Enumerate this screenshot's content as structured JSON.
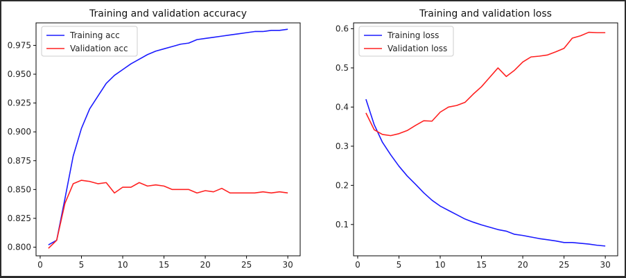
{
  "chart_data": [
    {
      "type": "line",
      "title": "Training and validation accuracy",
      "xlabel": "",
      "ylabel": "",
      "xlim": [
        -0.5,
        31.5
      ],
      "ylim": [
        0.7925,
        0.9945
      ],
      "xticks": [
        0,
        5,
        10,
        15,
        20,
        25,
        30
      ],
      "yticks": [
        0.8,
        0.825,
        0.85,
        0.875,
        0.9,
        0.925,
        0.95,
        0.975
      ],
      "ytick_labels": [
        "0.800",
        "0.825",
        "0.850",
        "0.875",
        "0.900",
        "0.925",
        "0.950",
        "0.975"
      ],
      "legend_position": "upper-left",
      "grid": false,
      "x": [
        1,
        2,
        3,
        4,
        5,
        6,
        7,
        8,
        9,
        10,
        11,
        12,
        13,
        14,
        15,
        16,
        17,
        18,
        19,
        20,
        21,
        22,
        23,
        24,
        25,
        26,
        27,
        28,
        29,
        30
      ],
      "series": [
        {
          "name": "Training acc",
          "color": "#1a1aff",
          "values": [
            0.802,
            0.806,
            0.842,
            0.879,
            0.903,
            0.92,
            0.931,
            0.942,
            0.949,
            0.954,
            0.959,
            0.963,
            0.967,
            0.97,
            0.972,
            0.974,
            0.976,
            0.977,
            0.98,
            0.981,
            0.982,
            0.983,
            0.984,
            0.985,
            0.986,
            0.987,
            0.987,
            0.988,
            0.988,
            0.989
          ]
        },
        {
          "name": "Validation acc",
          "color": "#ff2020",
          "values": [
            0.799,
            0.806,
            0.838,
            0.855,
            0.858,
            0.857,
            0.855,
            0.856,
            0.847,
            0.852,
            0.852,
            0.856,
            0.853,
            0.854,
            0.853,
            0.85,
            0.85,
            0.85,
            0.847,
            0.849,
            0.848,
            0.851,
            0.847,
            0.847,
            0.847,
            0.847,
            0.848,
            0.847,
            0.848,
            0.847
          ]
        }
      ]
    },
    {
      "type": "line",
      "title": "Training and validation loss",
      "xlabel": "",
      "ylabel": "",
      "xlim": [
        -0.5,
        31.5
      ],
      "ylim": [
        0.02,
        0.615
      ],
      "xticks": [
        0,
        5,
        10,
        15,
        20,
        25,
        30
      ],
      "yticks": [
        0.1,
        0.2,
        0.3,
        0.4,
        0.5,
        0.6
      ],
      "ytick_labels": [
        "0.1",
        "0.2",
        "0.3",
        "0.4",
        "0.5",
        "0.6"
      ],
      "legend_position": "upper-left",
      "grid": false,
      "x": [
        1,
        2,
        3,
        4,
        5,
        6,
        7,
        8,
        9,
        10,
        11,
        12,
        13,
        14,
        15,
        16,
        17,
        18,
        19,
        20,
        21,
        22,
        23,
        24,
        25,
        26,
        27,
        28,
        29,
        30
      ],
      "series": [
        {
          "name": "Training loss",
          "color": "#1a1aff",
          "values": [
            0.42,
            0.355,
            0.31,
            0.278,
            0.249,
            0.224,
            0.203,
            0.181,
            0.162,
            0.147,
            0.136,
            0.125,
            0.114,
            0.106,
            0.099,
            0.093,
            0.087,
            0.083,
            0.075,
            0.072,
            0.068,
            0.064,
            0.061,
            0.058,
            0.054,
            0.054,
            0.052,
            0.05,
            0.047,
            0.045
          ]
        },
        {
          "name": "Validation loss",
          "color": "#ff2020",
          "values": [
            0.385,
            0.342,
            0.33,
            0.327,
            0.332,
            0.34,
            0.353,
            0.365,
            0.364,
            0.387,
            0.4,
            0.404,
            0.412,
            0.433,
            0.452,
            0.476,
            0.5,
            0.478,
            0.494,
            0.515,
            0.528,
            0.53,
            0.533,
            0.541,
            0.55,
            0.576,
            0.582,
            0.591,
            0.59,
            0.59
          ]
        }
      ]
    }
  ]
}
